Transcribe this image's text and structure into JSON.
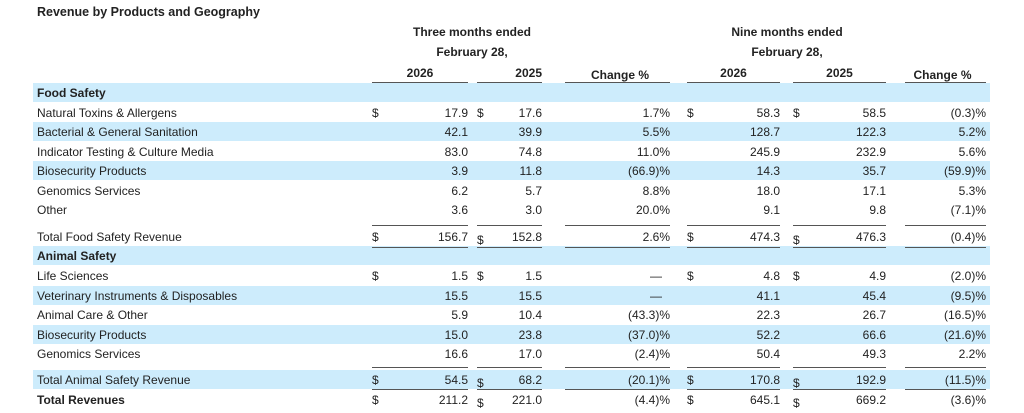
{
  "title": "Revenue by Products and Geography",
  "headers": {
    "three_months": "Three months ended",
    "three_months_date": "February 28,",
    "nine_months": "Nine months ended",
    "nine_months_date": "February 28,",
    "col_2026_a": "2026",
    "col_2025_a": "2025",
    "col_change_a": "Change %",
    "col_2026_b": "2026",
    "col_2025_b": "2025",
    "col_change_b": "Change %"
  },
  "rows": [
    {
      "label": "Food Safety",
      "type": "section",
      "blue": true
    },
    {
      "label": "Natural Toxins & Allergens",
      "dollar": true,
      "v": [
        "17.9",
        "17.6",
        "1.7%",
        "58.3",
        "58.5",
        "(0.3)%"
      ],
      "blue": false
    },
    {
      "label": "Bacterial & General Sanitation",
      "v": [
        "42.1",
        "39.9",
        "5.5%",
        "128.7",
        "122.3",
        "5.2%"
      ],
      "blue": true
    },
    {
      "label": "Indicator Testing & Culture Media",
      "v": [
        "83.0",
        "74.8",
        "11.0%",
        "245.9",
        "232.9",
        "5.6%"
      ],
      "blue": false
    },
    {
      "label": "Biosecurity Products",
      "v": [
        "3.9",
        "11.8",
        "(66.9)%",
        "14.3",
        "35.7",
        "(59.9)%"
      ],
      "blue": true
    },
    {
      "label": "Genomics Services",
      "v": [
        "6.2",
        "5.7",
        "8.8%",
        "18.0",
        "17.1",
        "5.3%"
      ],
      "blue": false
    },
    {
      "label": "Other",
      "v": [
        "3.6",
        "3.0",
        "20.0%",
        "9.1",
        "9.8",
        "(7.1)%"
      ],
      "blue": false
    },
    {
      "label": "Total Food Safety Revenue",
      "dollar": true,
      "v": [
        "156.7",
        "152.8",
        "2.6%",
        "474.3",
        "476.3",
        "(0.4)%"
      ],
      "blue": false,
      "gap": true
    },
    {
      "label": "Animal Safety",
      "type": "section",
      "blue": true
    },
    {
      "label": "Life Sciences",
      "dollar": true,
      "v": [
        "1.5",
        "1.5",
        "—",
        "4.8",
        "4.9",
        "(2.0)%"
      ],
      "blue": false
    },
    {
      "label": "Veterinary Instruments & Disposables",
      "v": [
        "15.5",
        "15.5",
        "—",
        "41.1",
        "45.4",
        "(9.5)%"
      ],
      "blue": true
    },
    {
      "label": "Animal Care & Other",
      "v": [
        "5.9",
        "10.4",
        "(43.3)%",
        "22.3",
        "26.7",
        "(16.5)%"
      ],
      "blue": false
    },
    {
      "label": "Biosecurity Products",
      "v": [
        "15.0",
        "23.8",
        "(37.0)%",
        "52.2",
        "66.6",
        "(21.6)%"
      ],
      "blue": true
    },
    {
      "label": "Genomics Services",
      "v": [
        "16.6",
        "17.0",
        "(2.4)%",
        "50.4",
        "49.3",
        "2.2%"
      ],
      "blue": false
    },
    {
      "label": "Total Animal Safety Revenue",
      "dollar": true,
      "v": [
        "54.5",
        "68.2",
        "(20.1)%",
        "170.8",
        "192.9",
        "(11.5)%"
      ],
      "blue": true,
      "gap": true
    },
    {
      "label": "Total Revenues",
      "dollar": true,
      "bold": true,
      "v": [
        "211.2",
        "221.0",
        "(4.4)%",
        "645.1",
        "669.2",
        "(3.6)%"
      ],
      "blue": false
    }
  ],
  "currency_symbol": "$"
}
